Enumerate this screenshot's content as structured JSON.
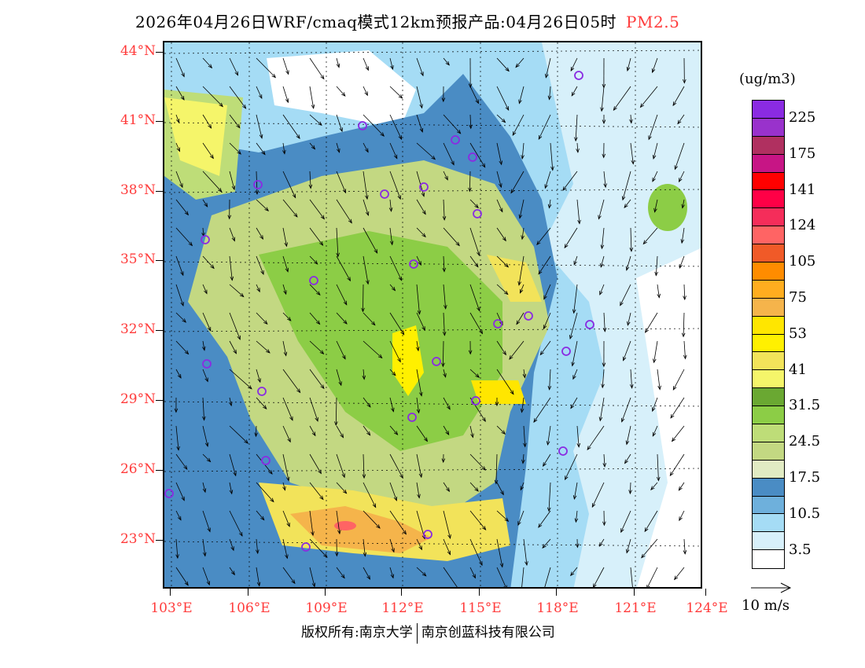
{
  "header": {
    "title": "2026年04月26日WRF/cmaq模式12km预报产品:04月26日05时",
    "pollutant": "PM2.5"
  },
  "axes": {
    "lat_labels": [
      "44°N",
      "41°N",
      "38°N",
      "35°N",
      "32°N",
      "29°N",
      "26°N",
      "23°N"
    ],
    "lon_labels": [
      "103°E",
      "106°E",
      "109°E",
      "112°E",
      "115°E",
      "118°E",
      "121°E",
      "124°E"
    ]
  },
  "colorbar": {
    "unit": "(ug/m3)",
    "labels": [
      "225",
      "175",
      "141",
      "124",
      "105",
      "75",
      "53",
      "41",
      "31.5",
      "24.5",
      "17.5",
      "10.5",
      "3.5"
    ],
    "colors": [
      "#8a2be2",
      "#9932cc",
      "#b03060",
      "#c71585",
      "#ff0000",
      "#ff0046",
      "#f52d5a",
      "#ff6464",
      "#f05a28",
      "#ff8c00",
      "#ffad1f",
      "#f5b44b",
      "#ffe600",
      "#fff000",
      "#f2e35a",
      "#f5f56a",
      "#6aa832",
      "#8ccd46",
      "#bedd78",
      "#c3d882",
      "#e1ebc3",
      "#4a8cc4",
      "#6eb0dc",
      "#a5dcf5",
      "#d7f0fa",
      "#ffffff"
    ]
  },
  "wind_reference": {
    "label": "10 m/s"
  },
  "footer": {
    "left": "版权所有:南京大学",
    "right": "南京创蓝科技有限公司"
  }
}
